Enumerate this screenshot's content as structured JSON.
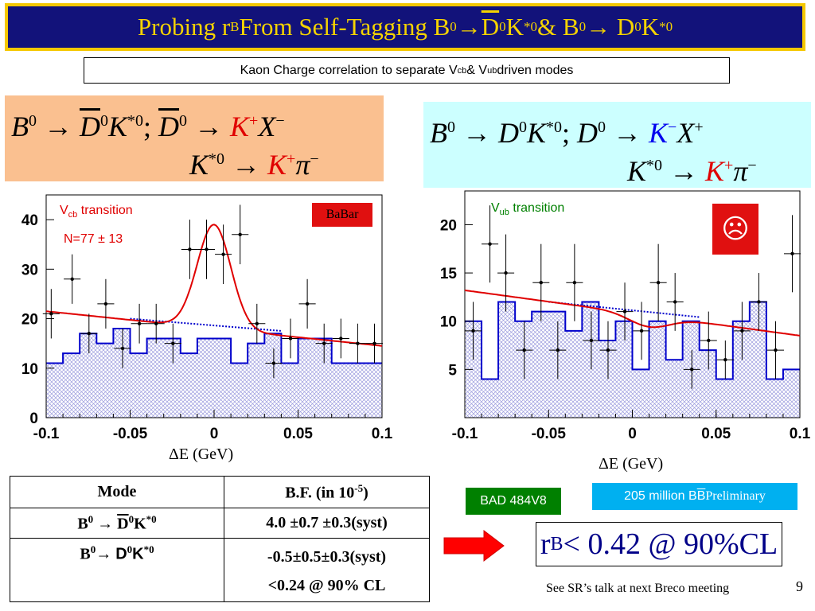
{
  "slide": {
    "title": {
      "prefix": "Probing r",
      "sub_b": "B",
      "from_text": " From Self-Tagging B",
      "sup0a": "0",
      "arrow1": "→ ",
      "dbar": "D",
      "sup0b": "0",
      "k1": "K",
      "sup_star0a": "*0",
      "amp": " & B",
      "sup0c": "0",
      "arrow2": "→ D",
      "sup0d": "0",
      "k2": "K",
      "sup_star0b": "*0"
    },
    "subtitle": {
      "part1": "Kaon Charge correlation to separate V",
      "sub_cb": "cb",
      "part2": " & V",
      "sub_ub": "ub",
      "part3": " driven modes"
    },
    "page_number": "9",
    "note": "See SR’s talk at next Breco meeting"
  },
  "decay_left": {
    "line1": {
      "b": "B",
      "b_sup": "0",
      "arrow": " → ",
      "dbar": "D",
      "dbar_sup": "0",
      "kstar": "K",
      "kstar_sup": "*0",
      "sep": "; ",
      "dbar2": "D",
      "dbar2_sup": "0",
      "arrow2": " → ",
      "kplus": "K",
      "kplus_sup": "+",
      "x": "X",
      "x_sup": "−"
    },
    "line2": {
      "kstar": "K",
      "kstar_sup": "*0",
      "arrow": " → ",
      "kplus": "K",
      "kplus_sup": "+",
      "pi": "π",
      "pi_sup": "−"
    }
  },
  "decay_right": {
    "line1": {
      "b": "B",
      "b_sup": "0",
      "arrow": " → ",
      "d": "D",
      "d_sup": "0",
      "kstar": "K",
      "kstar_sup": "*0",
      "sep": "; ",
      "d2": "D",
      "d2_sup": "0",
      "arrow2": " → ",
      "kminus": "K",
      "kminus_sup": "−",
      "x": "X",
      "x_sup": "+"
    },
    "line2": {
      "kstar": "K",
      "kstar_sup": "*0",
      "arrow": " → ",
      "kplus": "K",
      "kplus_sup": "+",
      "pi": "π",
      "pi_sup": "−"
    }
  },
  "plot_left_labels": {
    "transition_v": "V",
    "transition_sub": "cb",
    "transition_rest": " transition",
    "count": "N=77 ± 13",
    "experiment": "BaBar",
    "xlabel": "ΔE (GeV)"
  },
  "plot_right_labels": {
    "transition_v": "V",
    "transition_sub": "ub",
    "transition_rest": " transition",
    "face": "☹",
    "xlabel": "ΔE (GeV)"
  },
  "chart_data": [
    {
      "type": "histogram+scatter",
      "xlim": [
        -0.1,
        0.1
      ],
      "ylim": [
        0,
        45
      ],
      "x_ticks": [
        "-0.1",
        "-0.05",
        "0",
        "0.05",
        "0.1"
      ],
      "y_ticks": [
        "0",
        "10",
        "20",
        "30",
        "40"
      ],
      "colors": {
        "hist": "#0000cc",
        "fit": "#e00000",
        "bkg": "#0000cc",
        "points": "#000000"
      },
      "histogram": {
        "edges": [
          -0.1,
          -0.09,
          -0.08,
          -0.07,
          -0.06,
          -0.05,
          -0.04,
          -0.03,
          -0.02,
          -0.01,
          0.0,
          0.01,
          0.02,
          0.03,
          0.04,
          0.05,
          0.06,
          0.07,
          0.08,
          0.09,
          0.1
        ],
        "values": [
          11,
          13,
          17,
          15,
          18,
          13,
          16,
          16,
          13,
          16,
          16,
          11,
          15,
          17,
          11,
          16,
          16,
          11,
          11,
          11
        ]
      },
      "points": {
        "x": [
          -0.097,
          -0.0845,
          -0.0745,
          -0.0645,
          -0.0545,
          -0.0445,
          -0.0345,
          -0.0245,
          -0.0145,
          -0.0045,
          0.0055,
          0.0155,
          0.0255,
          0.0355,
          0.0455,
          0.0555,
          0.0655,
          0.0755,
          0.0855,
          0.0955
        ],
        "y": [
          21,
          28,
          17,
          23,
          14,
          19,
          19,
          15,
          34,
          34,
          33,
          37,
          19,
          11,
          16,
          23,
          15,
          16,
          15,
          15
        ],
        "err": [
          5,
          5,
          4,
          5,
          4,
          4,
          4,
          4,
          6,
          6,
          6,
          6,
          4,
          3,
          4,
          5,
          4,
          4,
          4,
          4
        ]
      },
      "fit_curve": {
        "bkg_start": 21.5,
        "bkg_end": 14.5,
        "peak_mean": 0.0,
        "peak_height": 21.0,
        "peak_sigma": 0.01
      },
      "bkg_dashed": {
        "start": 20,
        "end": 14.5
      }
    },
    {
      "type": "histogram+scatter",
      "xlim": [
        -0.1,
        0.1
      ],
      "ylim": [
        0,
        23.5
      ],
      "x_ticks": [
        "-0.1",
        "-0.05",
        "0",
        "0.05",
        "0.1"
      ],
      "y_ticks": [
        "5",
        "10",
        "15",
        "20"
      ],
      "colors": {
        "hist": "#0000cc",
        "fit": "#e00000",
        "bkg": "#0000cc",
        "points": "#000000"
      },
      "histogram": {
        "edges": [
          -0.1,
          -0.09,
          -0.08,
          -0.07,
          -0.06,
          -0.05,
          -0.04,
          -0.03,
          -0.02,
          -0.01,
          0.0,
          0.01,
          0.02,
          0.03,
          0.04,
          0.05,
          0.06,
          0.07,
          0.08,
          0.09,
          0.1
        ],
        "values": [
          10,
          4,
          12,
          10,
          11,
          11,
          9,
          12,
          8,
          10,
          5,
          10,
          6,
          10,
          7,
          4,
          10,
          12,
          4,
          5
        ]
      },
      "points": {
        "x": [
          -0.095,
          -0.085,
          -0.0755,
          -0.0645,
          -0.0545,
          -0.0445,
          -0.0345,
          -0.0245,
          -0.0145,
          -0.0045,
          0.0055,
          0.0155,
          0.0255,
          0.0355,
          0.0455,
          0.0555,
          0.0655,
          0.0755,
          0.0855,
          0.0955
        ],
        "y": [
          9,
          18,
          15,
          7,
          14,
          7,
          14,
          8,
          7,
          11,
          9,
          14,
          12,
          5,
          8,
          6,
          9,
          12,
          7,
          17
        ],
        "err": [
          3,
          4,
          4,
          3,
          4,
          3,
          4,
          3,
          3,
          3,
          3,
          4,
          3,
          2,
          3,
          2,
          3,
          3,
          3,
          4
        ]
      },
      "fit_curve": {
        "bkg_start": 13.2,
        "bkg_end": 8.5,
        "bump_mean": 0.01,
        "bump_height": -1.2,
        "bump_sigma": 0.012
      },
      "bkg_dashed": {
        "start": 12,
        "end": 8.5
      }
    }
  ],
  "table": {
    "headers": [
      "Mode",
      "B.F. (in 10",
      "-5",
      ")"
    ],
    "row1": {
      "mode_b": "B",
      "mode_b_sup": "0",
      "mode_arrow": " → ",
      "mode_dbar": "D",
      "mode_dbar_sup": "0",
      "mode_k": "K",
      "mode_k_sup": "*0",
      "bf": "4.0 ±0.7 ±0.3(syst)"
    },
    "row2": {
      "mode_b": "B",
      "mode_b_sup": "0",
      "mode_arrow": "→ ",
      "mode_d": "D",
      "mode_d_sup": "0",
      "mode_k": "K",
      "mode_k_sup": "*0",
      "bf1": "-0.5±0.5±0.3(syst)",
      "bf2": "<0.24 @ 90% CL"
    }
  },
  "bad_label": "BAD 484V8",
  "prelim": {
    "text": "205 million B",
    "bbar": "B",
    "preliminary": " Preliminary"
  },
  "result": {
    "r": "r",
    "sub": "B",
    "rest": "< 0.42 @ 90%CL"
  }
}
